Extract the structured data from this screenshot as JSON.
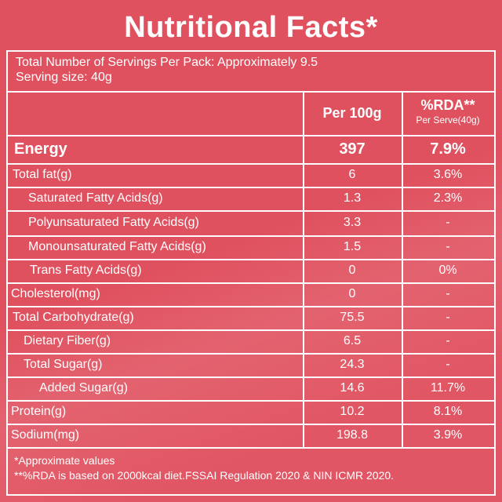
{
  "title": "Nutritional Facts*",
  "servings": {
    "per_pack": "Total Number of Servings Per Pack: Approximately 9.5",
    "size": "Serving size: 40g"
  },
  "header": {
    "per100": "Per 100g",
    "rda": "%RDA**",
    "rda_sub": "Per Serve(40g)"
  },
  "rows": [
    {
      "label": "Energy",
      "per100": "397",
      "rda": "7.9%"
    },
    {
      "label": "Total fat(g)",
      "per100": "6",
      "rda": "3.6%"
    },
    {
      "label": "Saturated  Fatty Acids(g)",
      "per100": "1.3",
      "rda": "2.3%"
    },
    {
      "label": "Polyunsaturated Fatty Acids(g)",
      "per100": "3.3",
      "rda": "-"
    },
    {
      "label": "Monounsaturated Fatty Acids(g)",
      "per100": "1.5",
      "rda": "-"
    },
    {
      "label": "Trans Fatty Acids(g)",
      "per100": "0",
      "rda": "0%"
    },
    {
      "label": "Cholesterol(mg)",
      "per100": "0",
      "rda": "-"
    },
    {
      "label": "Total Carbohydrate(g)",
      "per100": "75.5",
      "rda": "-"
    },
    {
      "label": "Dietary Fiber(g)",
      "per100": "6.5",
      "rda": "-"
    },
    {
      "label": "Total Sugar(g)",
      "per100": "24.3",
      "rda": "-"
    },
    {
      "label": "Added Sugar(g)",
      "per100": "14.6",
      "rda": "11.7%"
    },
    {
      "label": "Protein(g)",
      "per100": "10.2",
      "rda": "8.1%"
    },
    {
      "label": "Sodium(mg)",
      "per100": "198.8",
      "rda": "3.9%"
    }
  ],
  "footnotes": [
    "*Approximate values",
    "**%RDA is based on 2000kcal diet.FSSAI Regulation 2020 & NIN ICMR 2020."
  ],
  "colors": {
    "background": "#e0515f",
    "lines": "#ffffff"
  }
}
